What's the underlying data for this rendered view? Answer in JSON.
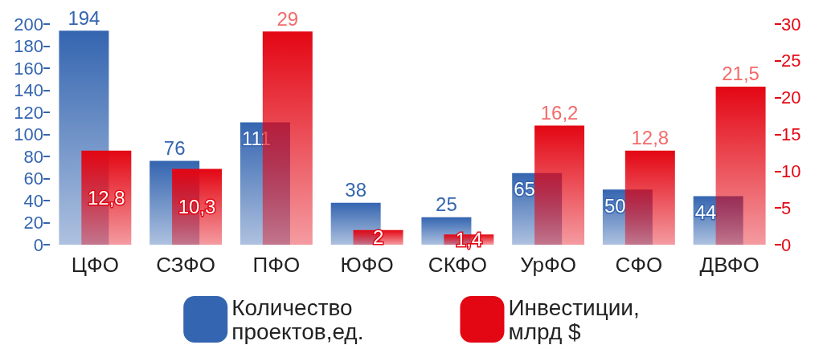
{
  "chart_data": {
    "type": "bar",
    "categories": [
      "ЦФО",
      "СЗФО",
      "ПФО",
      "ЮФО",
      "СКФО",
      "УрФО",
      "СФО",
      "ДВФО"
    ],
    "series": [
      {
        "name": "Количество проектов,ед.",
        "color": "#3465b0",
        "values": [
          194,
          76,
          111,
          38,
          25,
          65,
          50,
          44
        ]
      },
      {
        "name": "Инвестиции, млрд $",
        "color": "#e30613",
        "axis": "y2",
        "values": [
          12.8,
          10.3,
          29,
          2,
          1.4,
          16.2,
          12.8,
          21.5
        ],
        "value_labels": [
          "12,8",
          "10,3",
          "29",
          "2",
          "1,4",
          "16,2",
          "12,8",
          "21,5"
        ]
      }
    ],
    "ylim": [
      0,
      200
    ],
    "yticks": [
      0,
      20,
      40,
      60,
      80,
      100,
      120,
      140,
      160,
      180,
      200
    ],
    "y2lim": [
      0,
      30
    ],
    "y2ticks": [
      0,
      5,
      10,
      15,
      20,
      25,
      30
    ],
    "data_labels": true,
    "grid": false,
    "legend": "bottom"
  }
}
